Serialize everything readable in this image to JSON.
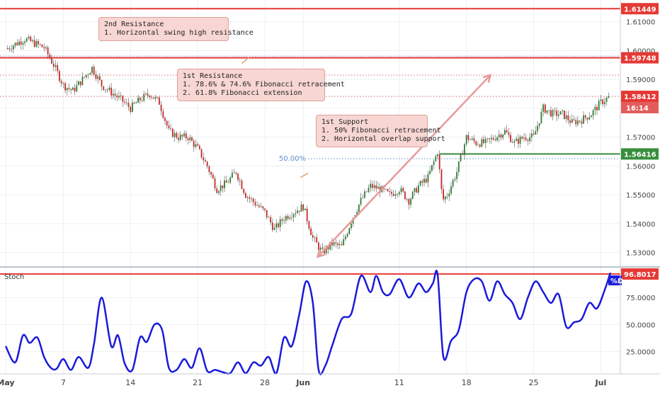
{
  "chart_data": [
    {
      "type": "candlestick",
      "title": "",
      "xlabel": "",
      "ylabel": "",
      "ylim": [
        1.525,
        1.6175
      ],
      "y_ticks": [
        "1.61000",
        "1.60000",
        "1.59000",
        "1.58000",
        "1.57000",
        "1.56000",
        "1.55000",
        "1.54000",
        "1.53000"
      ],
      "y_tick_values": [
        1.61,
        1.6,
        1.59,
        1.58,
        1.57,
        1.56,
        1.55,
        1.54,
        1.53
      ],
      "x_ticks": [
        "May",
        "7",
        "14",
        "21",
        "28",
        "Jun",
        "11",
        "18",
        "25",
        "Jul"
      ],
      "x_tick_days": [
        0,
        6,
        13,
        20,
        27,
        31,
        41,
        48,
        55,
        62
      ],
      "price_path": [
        [
          0,
          1.6005
        ],
        [
          2,
          1.604
        ],
        [
          4,
          1.601
        ],
        [
          5,
          1.595
        ],
        [
          6,
          1.588
        ],
        [
          7,
          1.586
        ],
        [
          8,
          1.59
        ],
        [
          9,
          1.594
        ],
        [
          10,
          1.588
        ],
        [
          12,
          1.583
        ],
        [
          13,
          1.58
        ],
        [
          14,
          1.583
        ],
        [
          15,
          1.585
        ],
        [
          16,
          1.582
        ],
        [
          17,
          1.572
        ],
        [
          18,
          1.57
        ],
        [
          19,
          1.57
        ],
        [
          20,
          1.566
        ],
        [
          21,
          1.56
        ],
        [
          22,
          1.552
        ],
        [
          23,
          1.554
        ],
        [
          24,
          1.558
        ],
        [
          25,
          1.55
        ],
        [
          26,
          1.547
        ],
        [
          27,
          1.544
        ],
        [
          28,
          1.538
        ],
        [
          29,
          1.542
        ],
        [
          30,
          1.544
        ],
        [
          31,
          1.546
        ],
        [
          32,
          1.535
        ],
        [
          33,
          1.53
        ],
        [
          34,
          1.533
        ],
        [
          35,
          1.532
        ],
        [
          36,
          1.541
        ],
        [
          37,
          1.548
        ],
        [
          38,
          1.553
        ],
        [
          39,
          1.552
        ],
        [
          40,
          1.55
        ],
        [
          41,
          1.552
        ],
        [
          42,
          1.548
        ],
        [
          43,
          1.553
        ],
        [
          44,
          1.556
        ],
        [
          45,
          1.565
        ],
        [
          45.5,
          1.548
        ],
        [
          46,
          1.55
        ],
        [
          47,
          1.558
        ],
        [
          48,
          1.57
        ],
        [
          49,
          1.568
        ],
        [
          50,
          1.568
        ],
        [
          51,
          1.57
        ],
        [
          52,
          1.572
        ],
        [
          53,
          1.568
        ],
        [
          54,
          1.57
        ],
        [
          55,
          1.57
        ],
        [
          56,
          1.58
        ],
        [
          57,
          1.578
        ],
        [
          58,
          1.578
        ],
        [
          59,
          1.575
        ],
        [
          60,
          1.576
        ],
        [
          61,
          1.578
        ],
        [
          62,
          1.582
        ],
        [
          63,
          1.5841
        ]
      ],
      "levels": [
        {
          "label": "1.61449",
          "value": 1.61449,
          "color": "#e53935"
        },
        {
          "label": "1.59748",
          "value": 1.59748,
          "color": "#e53935"
        },
        {
          "label": "1.58412",
          "value": 1.58412,
          "color": "#e53935"
        },
        {
          "label": "1.56416",
          "value": 1.56416,
          "color": "#388e3c"
        }
      ],
      "countdown": "16:14",
      "fib_label": "50.00%",
      "fib_value": 1.5625,
      "dotted_levels": [
        1.5981,
        1.5974,
        1.5915,
        1.5841
      ],
      "arrow_from": [
        32.5,
        1.5285
      ],
      "arrow_to": [
        50.5,
        1.5915
      ],
      "annotations": [
        {
          "lines": [
            "2nd Resistance",
            "1. Horizontal swing high resistance"
          ]
        },
        {
          "lines": [
            "1st Resistance",
            "1. 78.6% & 74.6% Fibonacci retracement",
            "2. 61.8% Fibonacci extension"
          ]
        },
        {
          "lines": [
            "1st Support",
            "1. 50% Fibonacci retracement",
            "2. Horizontal overlap support"
          ]
        }
      ]
    },
    {
      "type": "line",
      "title": "Stoch",
      "ylim": [
        5,
        102
      ],
      "y_ticks": [
        "75.0000",
        "50.0000",
        "25.0000"
      ],
      "y_tick_values": [
        75,
        50,
        25
      ],
      "current_value_label": "96.8017",
      "current_value": 96.8017,
      "series": [
        {
          "name": "%D",
          "color": "#1a1adb",
          "points": [
            [
              0,
              30
            ],
            [
              1,
              15
            ],
            [
              1.8,
              40
            ],
            [
              2.5,
              33
            ],
            [
              3.3,
              38
            ],
            [
              4,
              20
            ],
            [
              4.7,
              10
            ],
            [
              5.3,
              9
            ],
            [
              6,
              18
            ],
            [
              6.8,
              8
            ],
            [
              7.6,
              20
            ],
            [
              8.6,
              10
            ],
            [
              9.2,
              32
            ],
            [
              10,
              75
            ],
            [
              11,
              30
            ],
            [
              11.7,
              40
            ],
            [
              12.4,
              14
            ],
            [
              13.2,
              8
            ],
            [
              14,
              38
            ],
            [
              14.7,
              34
            ],
            [
              15.5,
              50
            ],
            [
              16.3,
              45
            ],
            [
              17,
              10
            ],
            [
              17.8,
              8
            ],
            [
              18.6,
              18
            ],
            [
              19.4,
              10
            ],
            [
              20.2,
              28
            ],
            [
              21,
              7
            ],
            [
              21.8,
              8
            ],
            [
              22.6,
              6
            ],
            [
              23.4,
              5
            ],
            [
              24.2,
              15
            ],
            [
              25,
              5
            ],
            [
              25.8,
              15
            ],
            [
              26.6,
              12
            ],
            [
              27.4,
              20
            ],
            [
              28.2,
              5
            ],
            [
              29,
              38
            ],
            [
              29.8,
              30
            ],
            [
              30.6,
              60
            ],
            [
              31.3,
              90
            ],
            [
              32,
              70
            ],
            [
              32.6,
              8
            ],
            [
              33.3,
              12
            ],
            [
              34,
              30
            ],
            [
              35,
              55
            ],
            [
              36,
              60
            ],
            [
              37,
              95
            ],
            [
              38,
              80
            ],
            [
              38.6,
              95
            ],
            [
              39.3,
              80
            ],
            [
              40,
              78
            ],
            [
              41,
              92
            ],
            [
              42,
              75
            ],
            [
              43,
              88
            ],
            [
              43.8,
              80
            ],
            [
              44.5,
              88
            ],
            [
              45,
              96
            ],
            [
              45.6,
              20
            ],
            [
              46.4,
              35
            ],
            [
              47.2,
              45
            ],
            [
              48,
              80
            ],
            [
              48.8,
              92
            ],
            [
              49.6,
              90
            ],
            [
              50.4,
              72
            ],
            [
              51.2,
              90
            ],
            [
              52,
              78
            ],
            [
              52.8,
              70
            ],
            [
              53.6,
              55
            ],
            [
              54.4,
              75
            ],
            [
              55.2,
              90
            ],
            [
              56,
              80
            ],
            [
              56.8,
              70
            ],
            [
              57.6,
              78
            ],
            [
              58.4,
              48
            ],
            [
              59.2,
              52
            ],
            [
              60,
              55
            ],
            [
              60.8,
              70
            ],
            [
              61.6,
              65
            ],
            [
              62.4,
              82
            ],
            [
              63,
              98
            ]
          ]
        }
      ]
    }
  ]
}
